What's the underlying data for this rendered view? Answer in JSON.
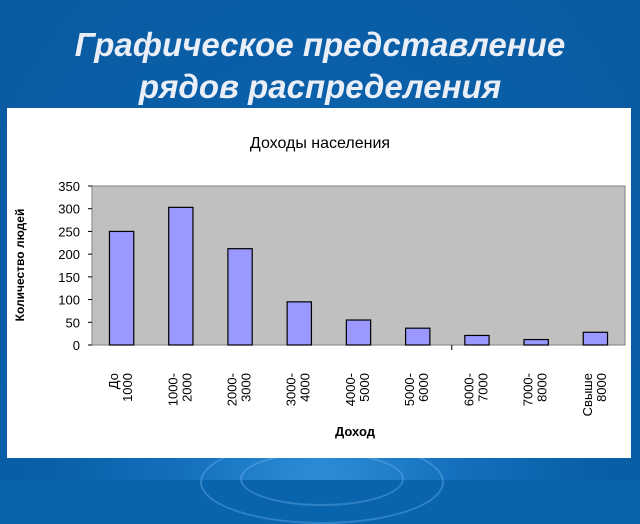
{
  "slide": {
    "title_line1": "Графическое представление",
    "title_line2": "рядов распределения"
  },
  "colors": {
    "background": "#0a63ad",
    "plot_area": "#c0c0c0",
    "bar_fill": "#9999ff",
    "bar_stroke": "#000000",
    "title_text": "#e9eef7"
  },
  "chart_data": {
    "type": "bar",
    "title": "Доходы населения",
    "xlabel": "Доход",
    "ylabel": "Количество людей",
    "ylim": [
      0,
      350
    ],
    "yticks": [
      0,
      50,
      100,
      150,
      200,
      250,
      300,
      350
    ],
    "grid": false,
    "legend": "none",
    "categories": [
      [
        "До",
        "1000"
      ],
      [
        "1000-",
        "2000"
      ],
      [
        "2000-",
        "3000"
      ],
      [
        "3000-",
        "4000"
      ],
      [
        "4000-",
        "5000"
      ],
      [
        "5000-",
        "6000"
      ],
      [
        "6000-",
        "7000"
      ],
      [
        "7000-",
        "8000"
      ],
      [
        "Свыше",
        "8000"
      ]
    ],
    "values": [
      250,
      303,
      212,
      95,
      55,
      37,
      21,
      12,
      28
    ]
  }
}
